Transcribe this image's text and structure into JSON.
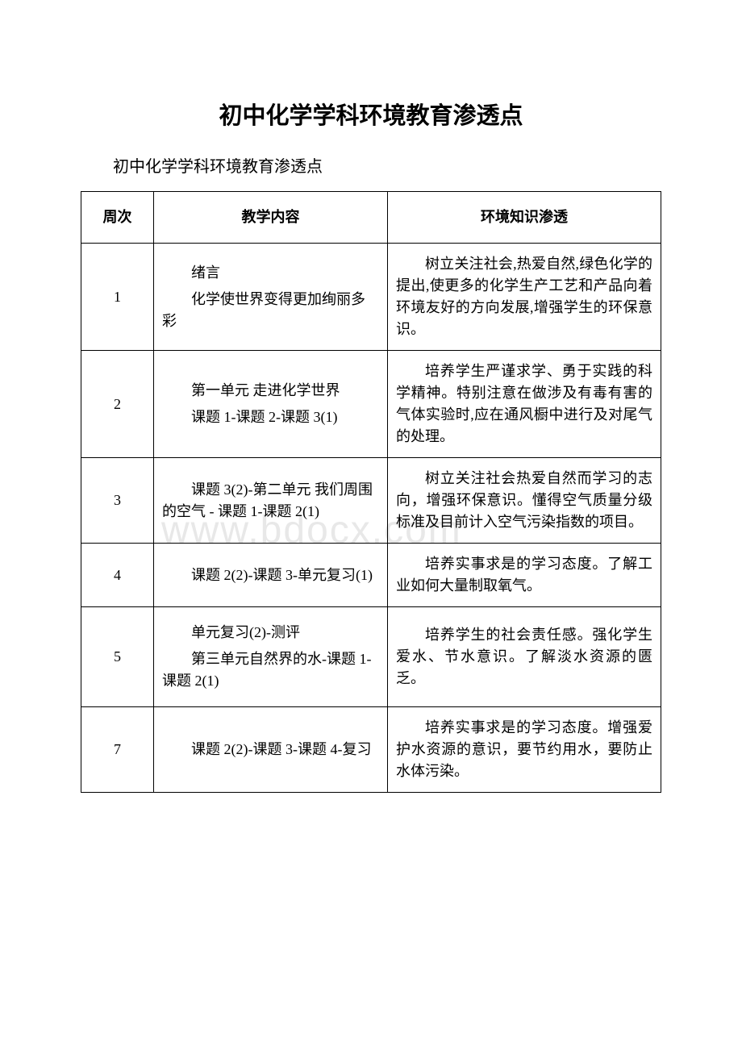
{
  "title": "初中化学学科环境教育渗透点",
  "subtitle": "初中化学学科环境教育渗透点",
  "watermark": "www.bdocx.com",
  "headers": {
    "week": "周次",
    "content": "教学内容",
    "env": "环境知识渗透"
  },
  "rows": [
    {
      "week": "1",
      "content_lines": [
        "绪言",
        "化学使世界变得更加绚丽多彩"
      ],
      "env": "树立关注社会,热爱自然,绿色化学的提出,使更多的化学生产工艺和产品向着环境友好的方向发展,增强学生的环保意识。"
    },
    {
      "week": "2",
      "content_lines": [
        "第一单元 走进化学世界",
        "课题 1-课题 2-课题 3(1)"
      ],
      "env": "培养学生严谨求学、勇于实践的科学精神。特别注意在做涉及有毒有害的气体实验时,应在通风橱中进行及对尾气的处理。"
    },
    {
      "week": "3",
      "content_lines": [
        "课题 3(2)-第二单元 我们周围的空气 - 课题 1-课题 2(1)"
      ],
      "env": "树立关注社会热爱自然而学习的志向，增强环保意识。懂得空气质量分级标准及目前计入空气污染指数的项目。"
    },
    {
      "week": "4",
      "content_lines": [
        "课题 2(2)-课题 3-单元复习(1)"
      ],
      "env": "培养实事求是的学习态度。了解工业如何大量制取氧气。"
    },
    {
      "week": "5",
      "content_lines": [
        "单元复习(2)-测评",
        "第三单元自然界的水-课题 1-课题 2(1)"
      ],
      "env": "培养学生的社会责任感。强化学生爱水、节水意识。了解淡水资源的匮乏。"
    },
    {
      "week": "7",
      "content_lines": [
        "课题 2(2)-课题 3-课题 4-复习"
      ],
      "env": "培养实事求是的学习态度。增强爱护水资源的意识，要节约用水，要防止水体污染。"
    }
  ]
}
